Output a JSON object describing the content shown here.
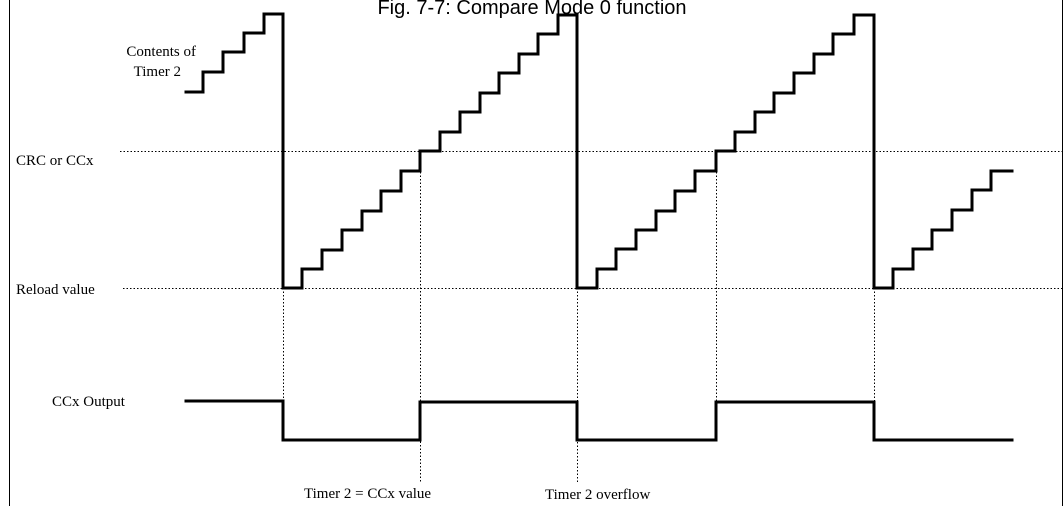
{
  "title": "Fig. 7-7: Compare Mode 0 function",
  "labels": {
    "contents_line1": "Contents of",
    "contents_line2": "Timer 2",
    "crc_or_ccx": "CRC or CCx",
    "reload_value": "Reload value",
    "ccx_output": "CCx Output",
    "timer_eq_ccx": "Timer 2 = CCx value",
    "timer_overflow": "Timer 2 overflow"
  },
  "colors": {
    "stroke": "#000000",
    "background": "#ffffff"
  }
}
